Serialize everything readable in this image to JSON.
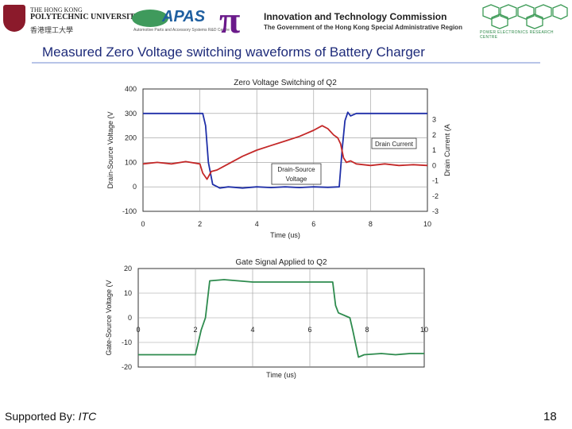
{
  "header": {
    "polyu_line1": "THE HONG KONG",
    "polyu_line2": "POLYTECHNIC UNIVERSITY",
    "polyu_chinese": "香港理工大學",
    "apas_logo": "APAS",
    "apas_subtitle": "Automotive Parts and Accessory Systems R&D Centre",
    "itc_title": "Innovation and Technology Commission",
    "itc_subtitle": "The Government of the Hong Kong Special Administrative Region",
    "perc_label": "POWER ELECTRONICS RESEARCH CENTRE"
  },
  "slide": {
    "title": "Measured Zero Voltage switching waveforms of Battery Charger",
    "footer_prefix": "Supported By:",
    "footer_org": "ITC",
    "page_number": "18"
  },
  "colors": {
    "voltage": "#1f2fa8",
    "current": "#c42828",
    "gate": "#2e8b4e",
    "title": "#1e2b7a"
  },
  "chart_data": [
    {
      "type": "line",
      "title": "Zero Voltage Switching of Q2",
      "xlabel": "Time (us)",
      "ylabel": "Drain-Source Voltage (V",
      "ylabel_right": "Drain Current (A",
      "xlim": [
        0,
        10
      ],
      "ylim": [
        -100,
        400
      ],
      "ylim_right": [
        -3,
        5
      ],
      "x_ticks": [
        "0",
        "2",
        "4",
        "6",
        "8",
        "10"
      ],
      "y_ticks": [
        "-100",
        "0",
        "100",
        "200",
        "300",
        "400"
      ],
      "y_ticks_right": [
        "-3",
        "-2",
        "-1",
        "0",
        "1",
        "2",
        "3"
      ],
      "grid": true,
      "annotations": [
        {
          "text": "Drain Current",
          "series": "Drain Current"
        },
        {
          "text": "Drain-Source Voltage",
          "lines": [
            "Drain-Source",
            "Voltage"
          ],
          "series": "Drain-Source Voltage"
        }
      ],
      "series": [
        {
          "name": "Drain-Source Voltage",
          "axis": "left",
          "x": [
            0,
            2.1,
            2.2,
            2.3,
            2.45,
            2.7,
            3,
            3.5,
            4,
            4.5,
            5,
            5.5,
            6,
            6.5,
            6.9,
            7.0,
            7.1,
            7.2,
            7.3,
            7.5,
            8,
            9,
            10
          ],
          "y": [
            300,
            300,
            250,
            100,
            10,
            -5,
            0,
            -5,
            0,
            -3,
            0,
            -3,
            0,
            -2,
            0,
            150,
            270,
            305,
            290,
            300,
            300,
            300,
            300
          ]
        },
        {
          "name": "Drain Current",
          "axis": "right",
          "x": [
            0,
            0.5,
            1,
            1.5,
            2,
            2.1,
            2.25,
            2.4,
            2.6,
            2.8,
            3,
            3.5,
            4,
            4.5,
            5,
            5.5,
            6,
            6.3,
            6.5,
            6.7,
            6.85,
            6.95,
            7.05,
            7.15,
            7.3,
            7.5,
            8,
            8.5,
            9,
            9.5,
            10
          ],
          "y": [
            0.1,
            0.2,
            0.1,
            0.25,
            0.1,
            -0.5,
            -0.9,
            -0.4,
            -0.3,
            -0.1,
            0.1,
            0.6,
            1.0,
            1.3,
            1.6,
            1.9,
            2.3,
            2.6,
            2.4,
            2.0,
            1.8,
            1.4,
            0.5,
            0.2,
            0.3,
            0.1,
            0.0,
            0.1,
            0.0,
            0.05,
            0.0
          ]
        }
      ]
    },
    {
      "type": "line",
      "title": "Gate Signal Applied to Q2",
      "xlabel": "Time (us)",
      "ylabel": "Gate-Source Voltage (V",
      "xlim": [
        0,
        10
      ],
      "ylim": [
        -20,
        20
      ],
      "x_ticks": [
        "0",
        "2",
        "4",
        "6",
        "8",
        "10"
      ],
      "y_ticks": [
        "-20",
        "-10",
        "0",
        "10",
        "20"
      ],
      "grid": true,
      "series": [
        {
          "name": "Gate-Source Voltage",
          "x": [
            0,
            1.5,
            1.8,
            2.0,
            2.2,
            2.35,
            2.5,
            3,
            3.5,
            4,
            5,
            6,
            6.8,
            6.9,
            7.0,
            7.4,
            7.5,
            7.7,
            7.9,
            8.5,
            9,
            9.5,
            10
          ],
          "y": [
            -15,
            -15,
            -15,
            -15,
            -5,
            0,
            15,
            15.5,
            15,
            14.5,
            14.5,
            14.5,
            14.5,
            5,
            2,
            0,
            -5,
            -16,
            -15,
            -14.5,
            -15,
            -14.5,
            -14.5
          ]
        }
      ]
    }
  ]
}
